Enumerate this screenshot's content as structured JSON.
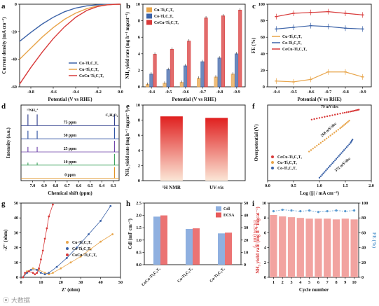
{
  "panels": {
    "a": {
      "letter": "a"
    },
    "b": {
      "letter": "b"
    },
    "c": {
      "letter": "c"
    },
    "d": {
      "letter": "d"
    },
    "e": {
      "letter": "e"
    },
    "f": {
      "letter": "f"
    },
    "g": {
      "letter": "g"
    },
    "h": {
      "letter": "h"
    },
    "i": {
      "letter": "i"
    }
  },
  "colors": {
    "CoCu": "#d83a3a",
    "Cu": "#e8a54b",
    "Co": "#3c63a8",
    "cdl": "#8fb0e0",
    "ecsa": "#e85a5a",
    "ppm75": "#2b3a8a",
    "ppm50": "#2a4ea0",
    "ppm25": "#6b3fa8",
    "ppm10": "#3aa05a",
    "ppm0": "#e09020"
  },
  "watermark": "⦿ 大数据",
  "chart_data": [
    {
      "panel": "a",
      "type": "line",
      "title": "",
      "xlabel": "Potential (V vs RHE)",
      "ylabel": "Current density (mA cm⁻²)",
      "xlim": [
        -0.9,
        0.0
      ],
      "ylim": [
        -60,
        0
      ],
      "xticks": [
        "-0.8",
        "-0.6",
        "-0.4",
        "-0.2",
        "0.0"
      ],
      "yticks": [
        "0",
        "-20",
        "-40",
        "-60"
      ],
      "legend": "bottom-right",
      "series": [
        {
          "name": "Co-Ti₃C₂Tₓ",
          "color_key": "Co",
          "x": [
            -0.9,
            -0.8,
            -0.7,
            -0.6,
            -0.5,
            -0.4,
            -0.3,
            -0.2,
            -0.12,
            -0.05,
            0.0
          ],
          "y": [
            -27,
            -20.5,
            -14.5,
            -9.5,
            -5.5,
            -2.8,
            -1.2,
            -0.4,
            -0.1,
            -0.02,
            0
          ]
        },
        {
          "name": "Cu-Ti₃C₂Tₓ",
          "color_key": "Cu",
          "x": [
            -0.9,
            -0.8,
            -0.7,
            -0.6,
            -0.5,
            -0.4,
            -0.3,
            -0.2,
            -0.12,
            -0.05,
            0.0
          ],
          "y": [
            -40,
            -32,
            -24,
            -17,
            -11,
            -6.5,
            -3.2,
            -1.2,
            -0.4,
            -0.1,
            0
          ]
        },
        {
          "name": "CoCu-Ti₃C₂Tₓ",
          "color_key": "CoCu",
          "x": [
            -0.9,
            -0.8,
            -0.7,
            -0.6,
            -0.5,
            -0.4,
            -0.3,
            -0.2,
            -0.12,
            -0.05,
            0.0
          ],
          "y": [
            -58,
            -46,
            -35,
            -25,
            -16.5,
            -9.5,
            -4.5,
            -1.6,
            -0.5,
            -0.1,
            0
          ]
        }
      ]
    },
    {
      "panel": "b",
      "type": "bar",
      "xlabel": "Potential (V vs RHE)",
      "ylabel": "NH₃ yield rate (mg h⁻¹ mgcat⁻¹)",
      "ylim": [
        0,
        10
      ],
      "yticks": [
        "0",
        "2",
        "4",
        "6",
        "8",
        "10"
      ],
      "categories": [
        "-0.4",
        "-0.5",
        "-0.6",
        "-0.7",
        "-0.8",
        "-0.9"
      ],
      "legend": "top-left",
      "series": [
        {
          "name": "Cu-Ti₃C₂Tₓ",
          "color_key": "Cu",
          "values": [
            0.3,
            0.45,
            0.55,
            1.05,
            1.2,
            1.55
          ]
        },
        {
          "name": "Co-Ti₃C₂Tₓ",
          "color_key": "Co",
          "values": [
            1.55,
            2.1,
            2.55,
            3.05,
            3.5,
            4.0
          ]
        },
        {
          "name": "CoCu-Ti₃C₂Tₓ",
          "color_key": "CoCu",
          "values": [
            3.95,
            4.55,
            5.55,
            8.35,
            8.6,
            9.3
          ]
        }
      ]
    },
    {
      "panel": "c",
      "type": "line",
      "xlabel": "Potential (V vs RHE)",
      "ylabel": "FE (%)",
      "xlim": [
        -0.35,
        -0.95
      ],
      "ylim": [
        0,
        100
      ],
      "xticks": [
        "-0.4",
        "-0.5",
        "-0.6",
        "-0.7",
        "-0.8",
        "-0.9"
      ],
      "yticks": [
        "0",
        "20",
        "40",
        "60",
        "80",
        "100"
      ],
      "legend": "center-left",
      "series": [
        {
          "name": "Cu-Ti₃C₂Tₓ",
          "color_key": "Cu",
          "x": [
            -0.4,
            -0.5,
            -0.6,
            -0.7,
            -0.8,
            -0.9
          ],
          "y": [
            7,
            6,
            9,
            18,
            18,
            12
          ]
        },
        {
          "name": "Co-Ti₃C₂Tₓ",
          "color_key": "Co",
          "x": [
            -0.4,
            -0.5,
            -0.6,
            -0.7,
            -0.8,
            -0.9
          ],
          "y": [
            70,
            72,
            74,
            73,
            71,
            70
          ]
        },
        {
          "name": "CoCu-Ti₃C₂Tₓ",
          "color_key": "CoCu",
          "x": [
            -0.4,
            -0.5,
            -0.6,
            -0.7,
            -0.8,
            -0.9
          ],
          "y": [
            85,
            89,
            90,
            91,
            89,
            87
          ]
        }
      ]
    },
    {
      "panel": "d",
      "type": "line",
      "xlabel": "Chemical shift (ppm)",
      "ylabel": "Intensity (a.u.)",
      "xlim": [
        7.1,
        6.25
      ],
      "xticks": [
        "7.0",
        "6.9",
        "6.8",
        "6.7",
        "6.6",
        "6.5",
        "6.4",
        "6.3"
      ],
      "peak_labels": [
        "¹⁵NH₄⁺",
        "C₄H₄O₄"
      ],
      "traces": [
        {
          "name": "75 ppm",
          "color_key": "ppm75",
          "peak_height": 1.0
        },
        {
          "name": "50 ppm",
          "color_key": "ppm50",
          "peak_height": 0.72
        },
        {
          "name": "25 ppm",
          "color_key": "ppm25",
          "peak_height": 0.45
        },
        {
          "name": "10 ppm",
          "color_key": "ppm10",
          "peak_height": 0.22
        },
        {
          "name": "0 ppm",
          "color_key": "ppm0",
          "peak_height": 0.0
        }
      ],
      "peaks_x": [
        7.04,
        6.96
      ],
      "ref_peak_x": 6.29
    },
    {
      "panel": "e",
      "type": "bar",
      "xlabel": "",
      "ylabel": "NH₃ yield rate (mg h⁻¹ mgcat⁻¹)",
      "ylim": [
        0,
        10
      ],
      "yticks": [
        "0",
        "2",
        "4",
        "6",
        "8",
        "10"
      ],
      "categories": [
        "¹H NMR",
        "UV-vis"
      ],
      "values": [
        8.5,
        8.3
      ]
    },
    {
      "panel": "f",
      "type": "scatter",
      "xlabel": "Log (|j| / mA cm⁻²)",
      "ylabel": "Overpotential (V)",
      "xlim": [
        0.0,
        2.0
      ],
      "xticks": [
        "0.0",
        "0.5",
        "1.0",
        "1.5",
        "2.0"
      ],
      "legend": "bottom-left",
      "annotations": [
        "79 mV/dec",
        "268 mV/dec",
        "372 mV/dec"
      ],
      "series": [
        {
          "name": "CoCu-Ti₃C₂Tₓ",
          "color_key": "CoCu",
          "x": [
            0.85,
            1.05,
            1.25,
            1.45,
            1.6,
            1.7,
            1.78
          ],
          "y": [
            0.42,
            0.435,
            0.45,
            0.465,
            0.475,
            0.483,
            0.49
          ]
        },
        {
          "name": "Cu-Ti₃C₂Tₓ",
          "color_key": "Cu",
          "x": [
            0.8,
            0.95,
            1.1,
            1.25,
            1.4,
            1.5,
            1.6
          ],
          "y": [
            0.2,
            0.24,
            0.28,
            0.32,
            0.36,
            0.39,
            0.42
          ]
        },
        {
          "name": "Co-Ti₃C₂Tₓ",
          "color_key": "Co",
          "x": [
            1.0,
            1.1,
            1.2,
            1.3,
            1.4,
            1.5,
            1.6,
            1.65
          ],
          "y": [
            0.02,
            0.06,
            0.1,
            0.14,
            0.18,
            0.22,
            0.26,
            0.29
          ]
        }
      ]
    },
    {
      "panel": "g",
      "type": "scatter",
      "xlabel": "Z' (ohm)",
      "ylabel": "-Z'' (ohm)",
      "xlim": [
        0,
        50
      ],
      "ylim": [
        0,
        50
      ],
      "xticks": [
        "0",
        "10",
        "20",
        "30",
        "40",
        "50"
      ],
      "yticks": [
        "0",
        "10",
        "20",
        "30",
        "40",
        "50"
      ],
      "legend": "bottom-right",
      "series": [
        {
          "name": "Cu-Ti₃C₂Tₓ",
          "color_key": "Cu",
          "x": [
            1,
            3,
            6,
            9,
            12,
            14,
            16,
            20,
            25,
            30,
            35,
            40,
            46
          ],
          "y": [
            0,
            4,
            6,
            5,
            3,
            2,
            3,
            6,
            10,
            14,
            19,
            24,
            29
          ]
        },
        {
          "name": "Co-Ti₃C₂Tₓ",
          "color_key": "Co",
          "x": [
            1,
            3,
            5,
            8,
            10,
            12,
            14,
            18,
            23,
            28,
            34,
            40,
            45
          ],
          "y": [
            0,
            3,
            5,
            5,
            3,
            2,
            3,
            7,
            13,
            20,
            29,
            38,
            48
          ]
        },
        {
          "name": "CoCu-Ti₃C₂Tₓ",
          "color_key": "CoCu",
          "x": [
            1,
            2,
            4,
            6,
            7,
            8,
            9,
            10,
            11,
            12,
            13,
            14,
            16
          ],
          "y": [
            0,
            3,
            4,
            3,
            2,
            3,
            6,
            12,
            18,
            26,
            33,
            41,
            49
          ]
        }
      ]
    },
    {
      "panel": "h",
      "type": "bar",
      "xlabel": "",
      "ylabel": "Cdl (mF cm⁻²)",
      "ylabel_right": "ECSA (cm⁻²)",
      "ylim": [
        0,
        2.5
      ],
      "ylim_right": [
        0,
        50
      ],
      "yticks": [
        "0.0",
        "0.5",
        "1.0",
        "1.5",
        "2.0",
        "2.5"
      ],
      "yticks_right": [
        "0",
        "10",
        "20",
        "30",
        "40",
        "50"
      ],
      "categories": [
        "CoCu-Ti₃C₂Tₓ",
        "Cu-Ti₃C₂Tₓ",
        "Co-Ti₃C₂Tₓ"
      ],
      "legend": "top-right",
      "series": [
        {
          "name": "Cdl",
          "color_key": "cdl",
          "values": [
            1.95,
            1.45,
            1.27
          ]
        },
        {
          "name": "ECSA",
          "color_key": "ecsa",
          "values": [
            40,
            29.5,
            26
          ]
        }
      ]
    },
    {
      "panel": "i",
      "type": "bar",
      "xlabel": "Cycle number",
      "ylabel": "NH₃ yield rate (mg h⁻¹ mgcat⁻¹)",
      "ylabel_right": "FE (%)",
      "ylim": [
        0,
        10
      ],
      "ylim_right": [
        0,
        100
      ],
      "yticks": [
        "0",
        "2",
        "4",
        "6",
        "8",
        "10"
      ],
      "yticks_right": [
        "0",
        "20",
        "40",
        "60",
        "80",
        "100"
      ],
      "categories": [
        "1",
        "2",
        "3",
        "4",
        "5",
        "6",
        "7",
        "8",
        "9",
        "10"
      ],
      "values": [
        8.4,
        8.2,
        8.1,
        8.0,
        7.9,
        7.9,
        7.9,
        7.8,
        7.9,
        7.8
      ],
      "fe": [
        89,
        91,
        90,
        89,
        90,
        88,
        89,
        90,
        89,
        90
      ]
    }
  ]
}
